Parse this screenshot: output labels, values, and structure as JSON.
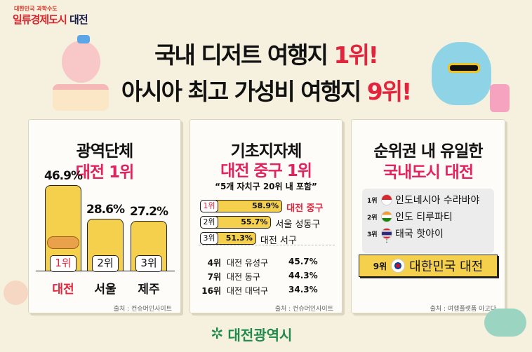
{
  "brand": {
    "tagline": "대한민국 과학수도",
    "name_red": "일류경제도시",
    "name_dark": "대전"
  },
  "headline": {
    "line1_black": "국내 디저트 여행지 ",
    "line1_red": "1위!",
    "line2_black": "아시아 최고 가성비 여행지 ",
    "line2_red": "9위!"
  },
  "card1": {
    "title": "광역단체",
    "subtitle": "대전 1위",
    "source": "출처 : 컨슈머인사이트",
    "bars": [
      {
        "rank": "1위",
        "city": "대전",
        "pct": "46.9%",
        "value": 46.9
      },
      {
        "rank": "2위",
        "city": "서울",
        "pct": "28.6%",
        "value": 28.6
      },
      {
        "rank": "3위",
        "city": "제주",
        "pct": "27.2%",
        "value": 27.2
      }
    ]
  },
  "card2": {
    "title": "기초지자체",
    "subtitle": "대전 중구 1위",
    "quote": "“5개 자치구 20위 내 포함”",
    "source": "출처 : 컨슈머인사이트",
    "bars": [
      {
        "rank": "1위",
        "pct": "58.9%",
        "value": 58.9,
        "name": "대전 중구"
      },
      {
        "rank": "2위",
        "pct": "55.7%",
        "value": 55.7,
        "name": "서울 성동구"
      },
      {
        "rank": "3위",
        "pct": "51.3%",
        "value": 51.3,
        "name": "대전 서구"
      }
    ],
    "rows": [
      {
        "rank": "4위",
        "name": "대전 유성구",
        "pct": "45.7%"
      },
      {
        "rank": "7위",
        "name": "대전 동구",
        "pct": "44.3%"
      },
      {
        "rank": "16위",
        "name": "대전 대덕구",
        "pct": "34.3%"
      }
    ]
  },
  "card3": {
    "title": "순위권 내 유일한",
    "subtitle": "국내도시 대전",
    "source": "출처 : 여행플랫폼 아고다",
    "rows": [
      {
        "rank": "1위",
        "flag": "indonesia-flag",
        "name": "인도네시아 수라바야"
      },
      {
        "rank": "2위",
        "flag": "india-flag",
        "name": "인도 티루파티"
      },
      {
        "rank": "3위",
        "flag": "thailand-flag",
        "name": "태국 핫야이"
      }
    ],
    "ellipsis": "⋮",
    "highlight": {
      "rank": "9위",
      "flag": "korea-flag",
      "name": "대한민국 대전"
    }
  },
  "footer": {
    "logo_text": "대전광역시"
  },
  "colors": {
    "accent_red": "#e2243c",
    "bar_yellow": "#f4d04d",
    "logo_green": "#1f8a4c"
  }
}
